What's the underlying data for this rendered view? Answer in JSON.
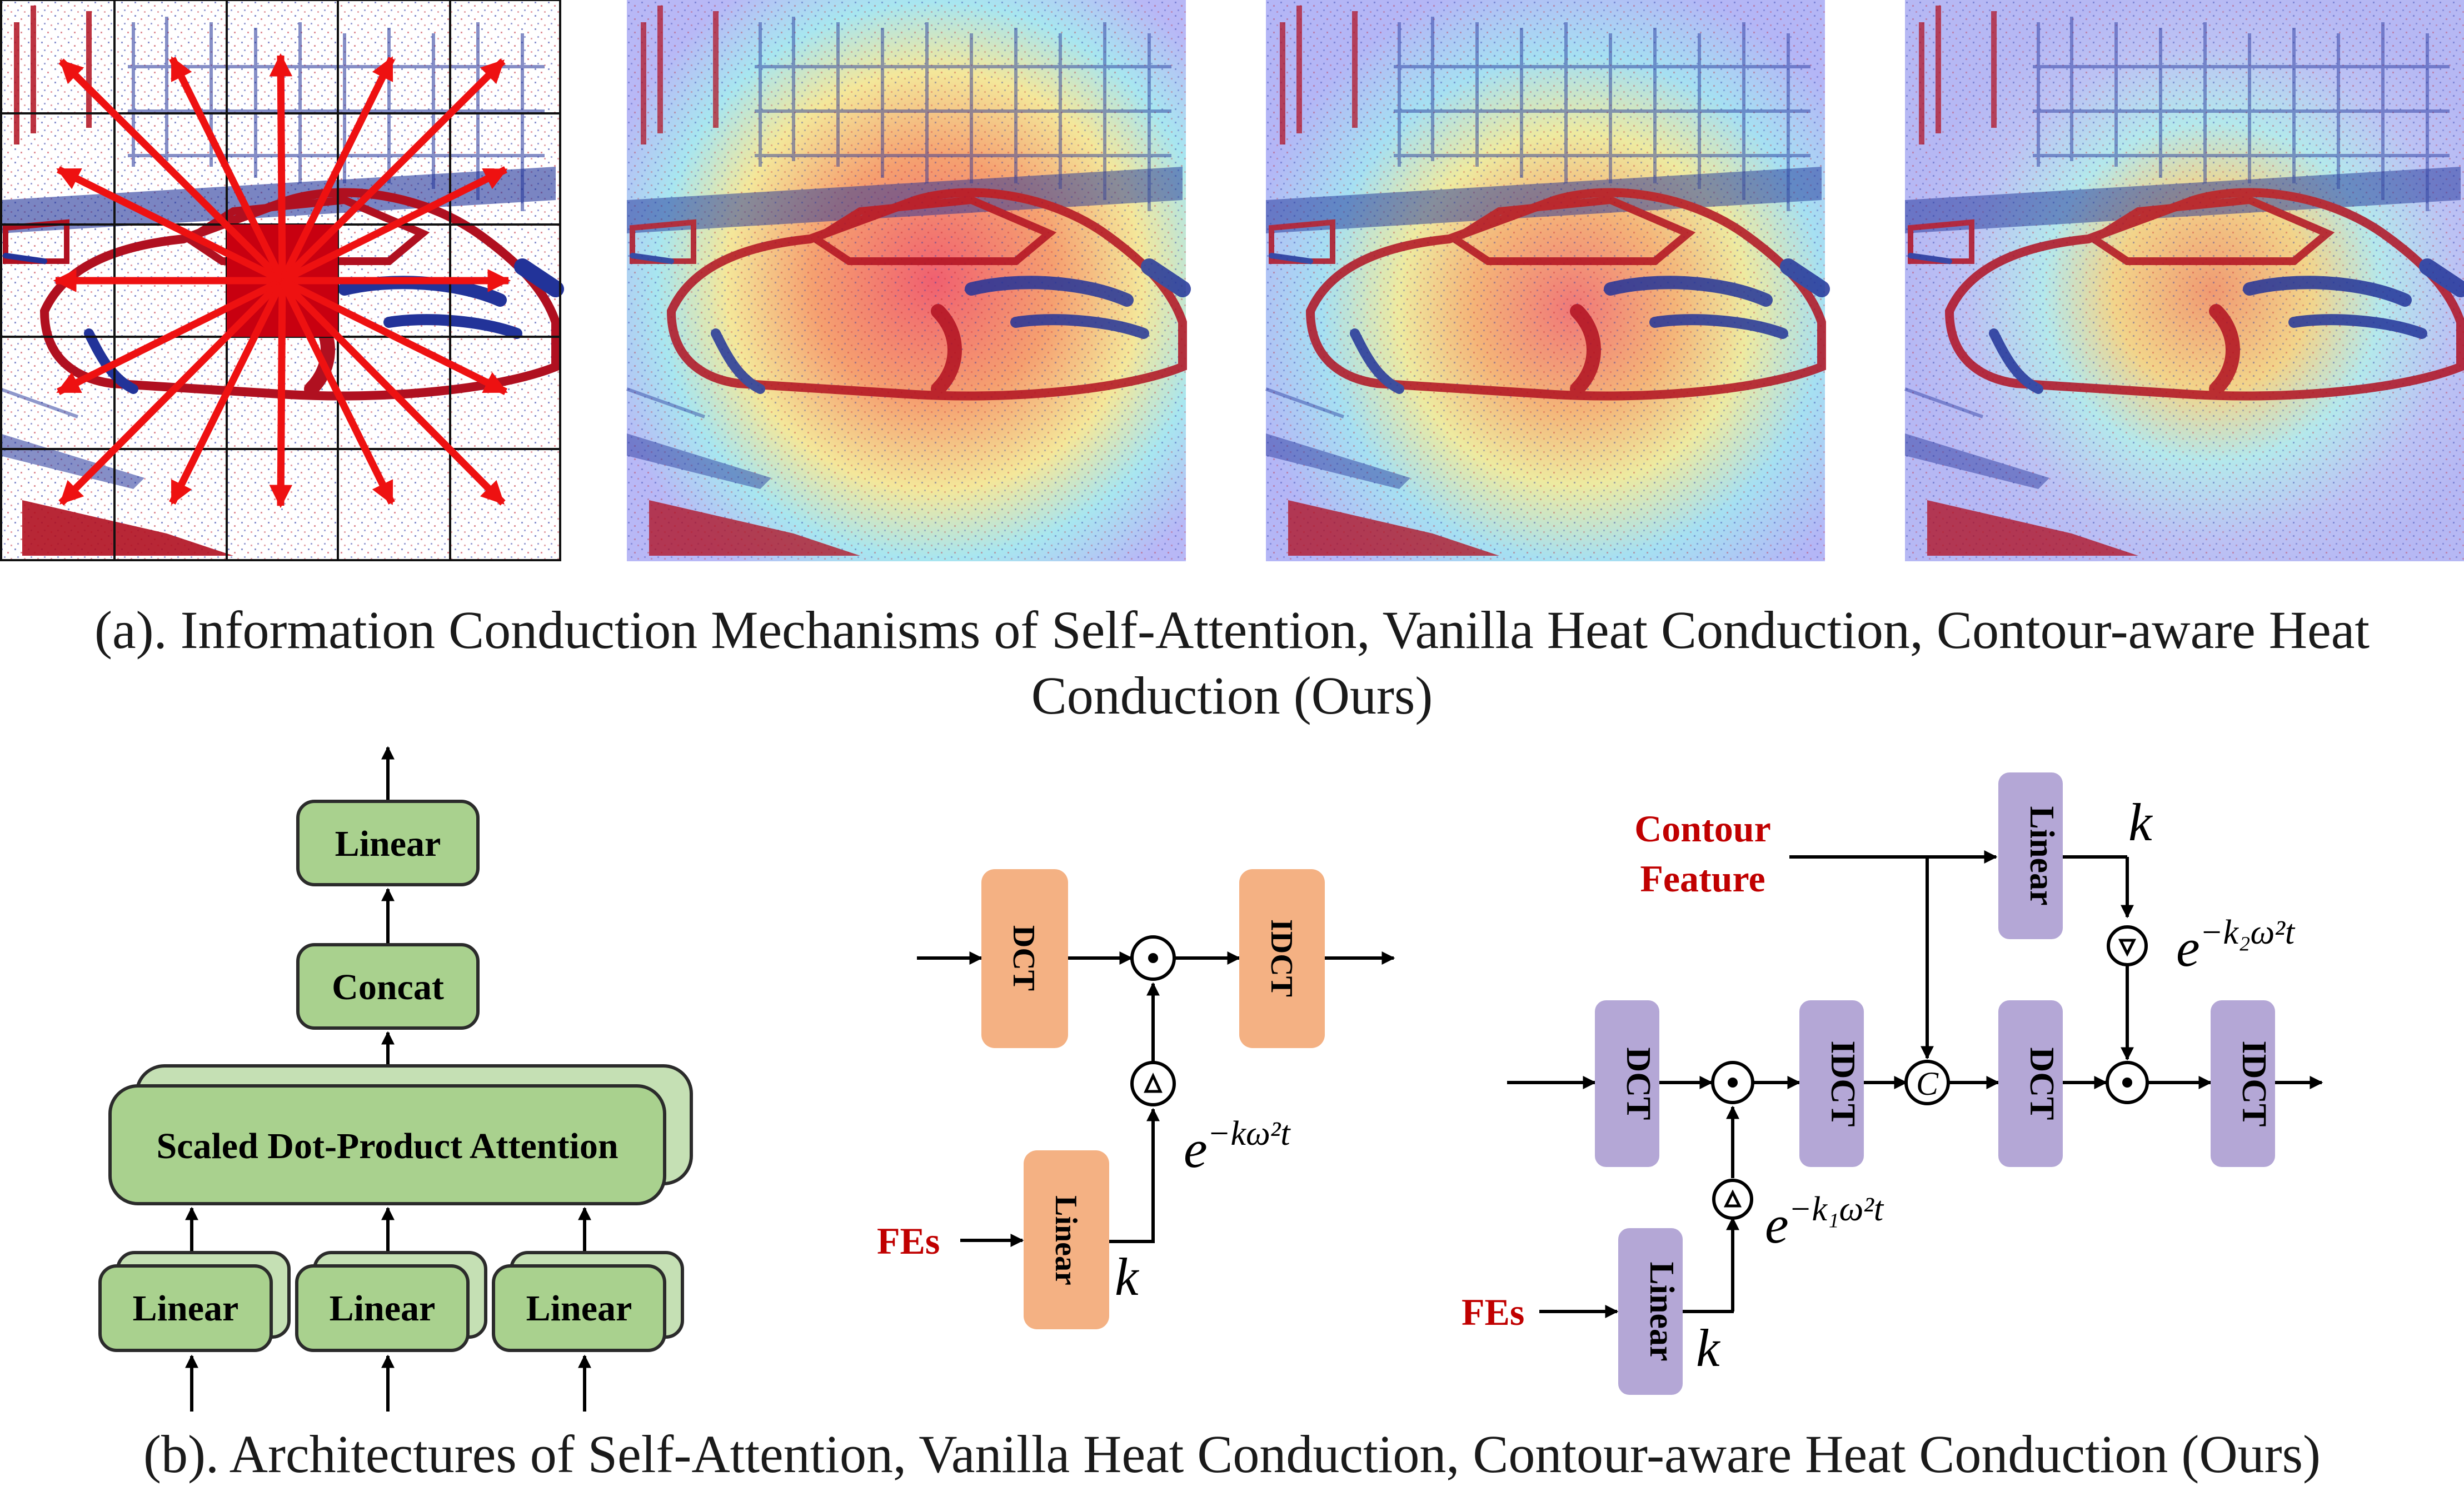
{
  "captions": {
    "a_line1": "(a). Information Conduction Mechanisms of Self-Attention, Vanilla Heat Conduction, Contour-aware Heat",
    "a_line2": "Conduction (Ours)",
    "b": "(b). Architectures of Self-Attention, Vanilla Heat Conduction, Contour-aware Heat Conduction (Ours)"
  },
  "self_attention": {
    "linear_top": "Linear",
    "concat": "Concat",
    "sdpa": "Scaled Dot-Product Attention",
    "linear_q": "Linear",
    "linear_k": "Linear",
    "linear_v": "Linear",
    "box_color": "#a9d18e",
    "box_border": "#2b2b2b"
  },
  "vanilla_heat": {
    "dct": "DCT",
    "idct": "IDCT",
    "linear": "Linear",
    "fes": "FEs",
    "k": "k",
    "decay": "e",
    "decay_exp": "−kω²t",
    "box_color": "#f4b183"
  },
  "contour_heat": {
    "contour_line1": "Contour",
    "contour_line2": "Feature",
    "linear_top": "Linear",
    "linear_bottom": "Linear",
    "dct1": "DCT",
    "idct1": "IDCT",
    "dct2": "DCT",
    "idct2": "IDCT",
    "concat_symbol": "C",
    "fes": "FEs",
    "k_top": "k",
    "k_bottom": "k",
    "decay1": "e",
    "decay1_exp": "−k₁ω²t",
    "decay2": "e",
    "decay2_exp": "−k₂ω²t",
    "box_color": "#b4a7d6"
  },
  "colors": {
    "label_red": "#c00000",
    "arrow_red": "#ee1111"
  }
}
